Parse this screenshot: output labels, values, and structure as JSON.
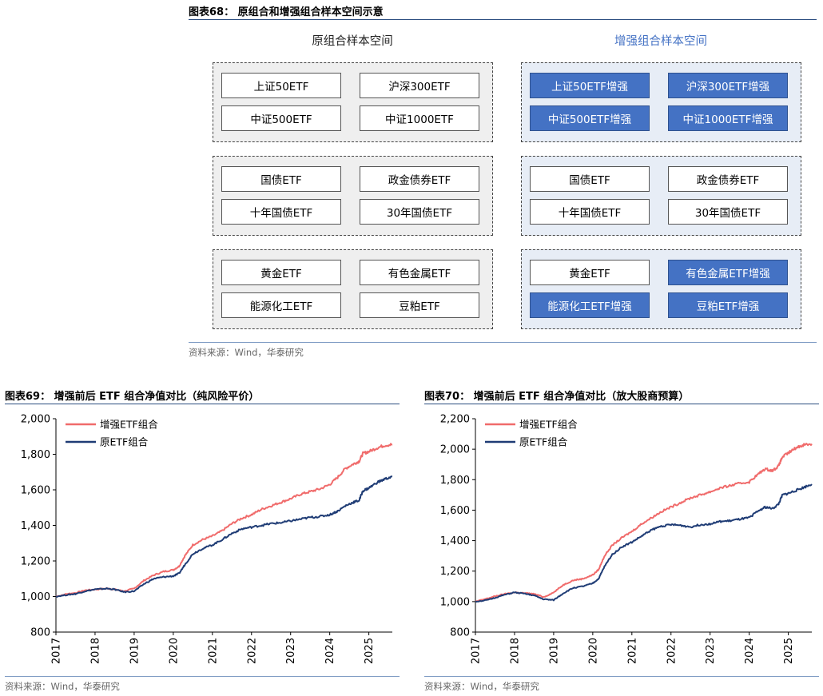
{
  "fig68": {
    "title": "图表68：  原组合和增强组合样本空间示意",
    "left_header": "原组合样本空间",
    "right_header": "增强组合样本空间",
    "header_colors": {
      "left": "#222222",
      "right": "#4472c4"
    },
    "groups": [
      {
        "left": [
          "上证50ETF",
          "沪深300ETF",
          "中证500ETF",
          "中证1000ETF"
        ],
        "right": [
          "上证50ETF增强",
          "沪深300ETF增强",
          "中证500ETF增强",
          "中证1000ETF增强"
        ],
        "right_enhanced": [
          true,
          true,
          true,
          true
        ]
      },
      {
        "left": [
          "国债ETF",
          "政金债券ETF",
          "十年国债ETF",
          "30年国债ETF"
        ],
        "right": [
          "国债ETF",
          "政金债券ETF",
          "十年国债ETF",
          "30年国债ETF"
        ],
        "right_enhanced": [
          false,
          false,
          false,
          false
        ]
      },
      {
        "left": [
          "黄金ETF",
          "有色金属ETF",
          "能源化工ETF",
          "豆粕ETF"
        ],
        "right": [
          "黄金ETF",
          "有色金属ETF增强",
          "能源化工ETF增强",
          "豆粕ETF增强"
        ],
        "right_enhanced": [
          false,
          true,
          true,
          true
        ]
      }
    ],
    "source": "资料来源：Wind，华泰研究"
  },
  "fig69": {
    "title": "图表69：  增强前后 ETF 组合净值对比（纯风险平价）",
    "source": "资料来源：Wind，华泰研究"
  },
  "fig70": {
    "title": "图表70：  增强前后 ETF 组合净值对比（放大股商预算）",
    "source": "资料来源：Wind，华泰研究"
  },
  "chart_data": [
    {
      "type": "line",
      "title": "图表69：  增强前后 ETF 组合净值对比（纯风险平价）",
      "ylim": [
        800,
        2000
      ],
      "yticks": [
        800,
        1000,
        1200,
        1400,
        1600,
        1800,
        2000
      ],
      "ytick_labels": [
        "800",
        "1,000",
        "1,200",
        "1,400",
        "1,600",
        "1,800",
        "2,000"
      ],
      "xlim": [
        2017.0,
        2025.6
      ],
      "xticks": [
        "2017",
        "2018",
        "2019",
        "2020",
        "2021",
        "2022",
        "2023",
        "2024",
        "2025"
      ],
      "legend": "top-left",
      "grid": false,
      "series": [
        {
          "name": "增强ETF组合",
          "color": "#f06b6b",
          "points": [
            [
              2017.0,
              1000
            ],
            [
              2017.3,
              1015
            ],
            [
              2017.5,
              1020
            ],
            [
              2017.75,
              1035
            ],
            [
              2018.0,
              1040
            ],
            [
              2018.3,
              1045
            ],
            [
              2018.5,
              1040
            ],
            [
              2018.75,
              1030
            ],
            [
              2019.0,
              1045
            ],
            [
              2019.25,
              1090
            ],
            [
              2019.5,
              1120
            ],
            [
              2019.75,
              1140
            ],
            [
              2020.0,
              1150
            ],
            [
              2020.15,
              1170
            ],
            [
              2020.3,
              1230
            ],
            [
              2020.5,
              1290
            ],
            [
              2020.75,
              1320
            ],
            [
              2021.0,
              1340
            ],
            [
              2021.25,
              1370
            ],
            [
              2021.5,
              1410
            ],
            [
              2021.75,
              1440
            ],
            [
              2022.0,
              1460
            ],
            [
              2022.25,
              1490
            ],
            [
              2022.5,
              1510
            ],
            [
              2022.75,
              1530
            ],
            [
              2023.0,
              1550
            ],
            [
              2023.25,
              1575
            ],
            [
              2023.5,
              1590
            ],
            [
              2023.75,
              1605
            ],
            [
              2024.0,
              1630
            ],
            [
              2024.2,
              1670
            ],
            [
              2024.4,
              1720
            ],
            [
              2024.6,
              1745
            ],
            [
              2024.75,
              1760
            ],
            [
              2024.85,
              1805
            ],
            [
              2025.0,
              1815
            ],
            [
              2025.2,
              1835
            ],
            [
              2025.4,
              1850
            ],
            [
              2025.6,
              1855
            ]
          ]
        },
        {
          "name": "原ETF组合",
          "color": "#1f3c75",
          "points": [
            [
              2017.0,
              1000
            ],
            [
              2017.3,
              1010
            ],
            [
              2017.5,
              1015
            ],
            [
              2017.75,
              1030
            ],
            [
              2018.0,
              1040
            ],
            [
              2018.3,
              1045
            ],
            [
              2018.5,
              1040
            ],
            [
              2018.75,
              1025
            ],
            [
              2019.0,
              1030
            ],
            [
              2019.25,
              1070
            ],
            [
              2019.5,
              1100
            ],
            [
              2019.75,
              1110
            ],
            [
              2020.0,
              1115
            ],
            [
              2020.15,
              1130
            ],
            [
              2020.3,
              1180
            ],
            [
              2020.5,
              1240
            ],
            [
              2020.75,
              1270
            ],
            [
              2021.0,
              1290
            ],
            [
              2021.25,
              1320
            ],
            [
              2021.5,
              1355
            ],
            [
              2021.75,
              1380
            ],
            [
              2022.0,
              1390
            ],
            [
              2022.25,
              1400
            ],
            [
              2022.5,
              1410
            ],
            [
              2022.75,
              1415
            ],
            [
              2023.0,
              1425
            ],
            [
              2023.25,
              1435
            ],
            [
              2023.5,
              1445
            ],
            [
              2023.75,
              1450
            ],
            [
              2024.0,
              1460
            ],
            [
              2024.2,
              1480
            ],
            [
              2024.4,
              1510
            ],
            [
              2024.6,
              1530
            ],
            [
              2024.75,
              1540
            ],
            [
              2024.85,
              1595
            ],
            [
              2025.0,
              1610
            ],
            [
              2025.2,
              1640
            ],
            [
              2025.4,
              1660
            ],
            [
              2025.6,
              1675
            ]
          ]
        }
      ]
    },
    {
      "type": "line",
      "title": "图表70：  增强前后 ETF 组合净值对比（放大股商预算）",
      "ylim": [
        800,
        2200
      ],
      "yticks": [
        800,
        1000,
        1200,
        1400,
        1600,
        1800,
        2000,
        2200
      ],
      "ytick_labels": [
        "800",
        "1,000",
        "1,200",
        "1,400",
        "1,600",
        "1,800",
        "2,000",
        "2,200"
      ],
      "xlim": [
        2017.0,
        2025.6
      ],
      "xticks": [
        "2017",
        "2018",
        "2019",
        "2020",
        "2021",
        "2022",
        "2023",
        "2024",
        "2025"
      ],
      "legend": "top-left",
      "grid": false,
      "series": [
        {
          "name": "增强ETF组合",
          "color": "#f06b6b",
          "points": [
            [
              2017.0,
              1000
            ],
            [
              2017.3,
              1020
            ],
            [
              2017.5,
              1035
            ],
            [
              2017.75,
              1050
            ],
            [
              2018.0,
              1060
            ],
            [
              2018.3,
              1055
            ],
            [
              2018.5,
              1050
            ],
            [
              2018.75,
              1030
            ],
            [
              2019.0,
              1060
            ],
            [
              2019.25,
              1110
            ],
            [
              2019.5,
              1140
            ],
            [
              2019.75,
              1150
            ],
            [
              2020.0,
              1175
            ],
            [
              2020.15,
              1210
            ],
            [
              2020.3,
              1300
            ],
            [
              2020.5,
              1370
            ],
            [
              2020.75,
              1420
            ],
            [
              2021.0,
              1460
            ],
            [
              2021.25,
              1510
            ],
            [
              2021.5,
              1550
            ],
            [
              2021.75,
              1590
            ],
            [
              2022.0,
              1620
            ],
            [
              2022.25,
              1650
            ],
            [
              2022.5,
              1680
            ],
            [
              2022.75,
              1700
            ],
            [
              2023.0,
              1720
            ],
            [
              2023.25,
              1745
            ],
            [
              2023.5,
              1760
            ],
            [
              2023.75,
              1775
            ],
            [
              2024.0,
              1785
            ],
            [
              2024.2,
              1830
            ],
            [
              2024.4,
              1870
            ],
            [
              2024.6,
              1860
            ],
            [
              2024.75,
              1890
            ],
            [
              2024.85,
              1950
            ],
            [
              2025.0,
              1975
            ],
            [
              2025.2,
              2010
            ],
            [
              2025.4,
              2030
            ],
            [
              2025.6,
              2035
            ]
          ]
        },
        {
          "name": "原ETF组合",
          "color": "#1f3c75",
          "points": [
            [
              2017.0,
              1000
            ],
            [
              2017.3,
              1010
            ],
            [
              2017.5,
              1025
            ],
            [
              2017.75,
              1045
            ],
            [
              2018.0,
              1060
            ],
            [
              2018.3,
              1050
            ],
            [
              2018.5,
              1040
            ],
            [
              2018.75,
              1015
            ],
            [
              2019.0,
              1010
            ],
            [
              2019.25,
              1055
            ],
            [
              2019.5,
              1090
            ],
            [
              2019.75,
              1100
            ],
            [
              2020.0,
              1120
            ],
            [
              2020.15,
              1150
            ],
            [
              2020.3,
              1230
            ],
            [
              2020.5,
              1310
            ],
            [
              2020.75,
              1360
            ],
            [
              2021.0,
              1390
            ],
            [
              2021.25,
              1430
            ],
            [
              2021.5,
              1470
            ],
            [
              2021.75,
              1495
            ],
            [
              2022.0,
              1505
            ],
            [
              2022.25,
              1500
            ],
            [
              2022.5,
              1490
            ],
            [
              2022.75,
              1505
            ],
            [
              2023.0,
              1510
            ],
            [
              2023.25,
              1525
            ],
            [
              2023.5,
              1530
            ],
            [
              2023.75,
              1540
            ],
            [
              2024.0,
              1550
            ],
            [
              2024.2,
              1590
            ],
            [
              2024.4,
              1620
            ],
            [
              2024.6,
              1610
            ],
            [
              2024.75,
              1640
            ],
            [
              2024.85,
              1700
            ],
            [
              2025.0,
              1710
            ],
            [
              2025.2,
              1730
            ],
            [
              2025.4,
              1750
            ],
            [
              2025.6,
              1770
            ]
          ]
        }
      ]
    }
  ]
}
